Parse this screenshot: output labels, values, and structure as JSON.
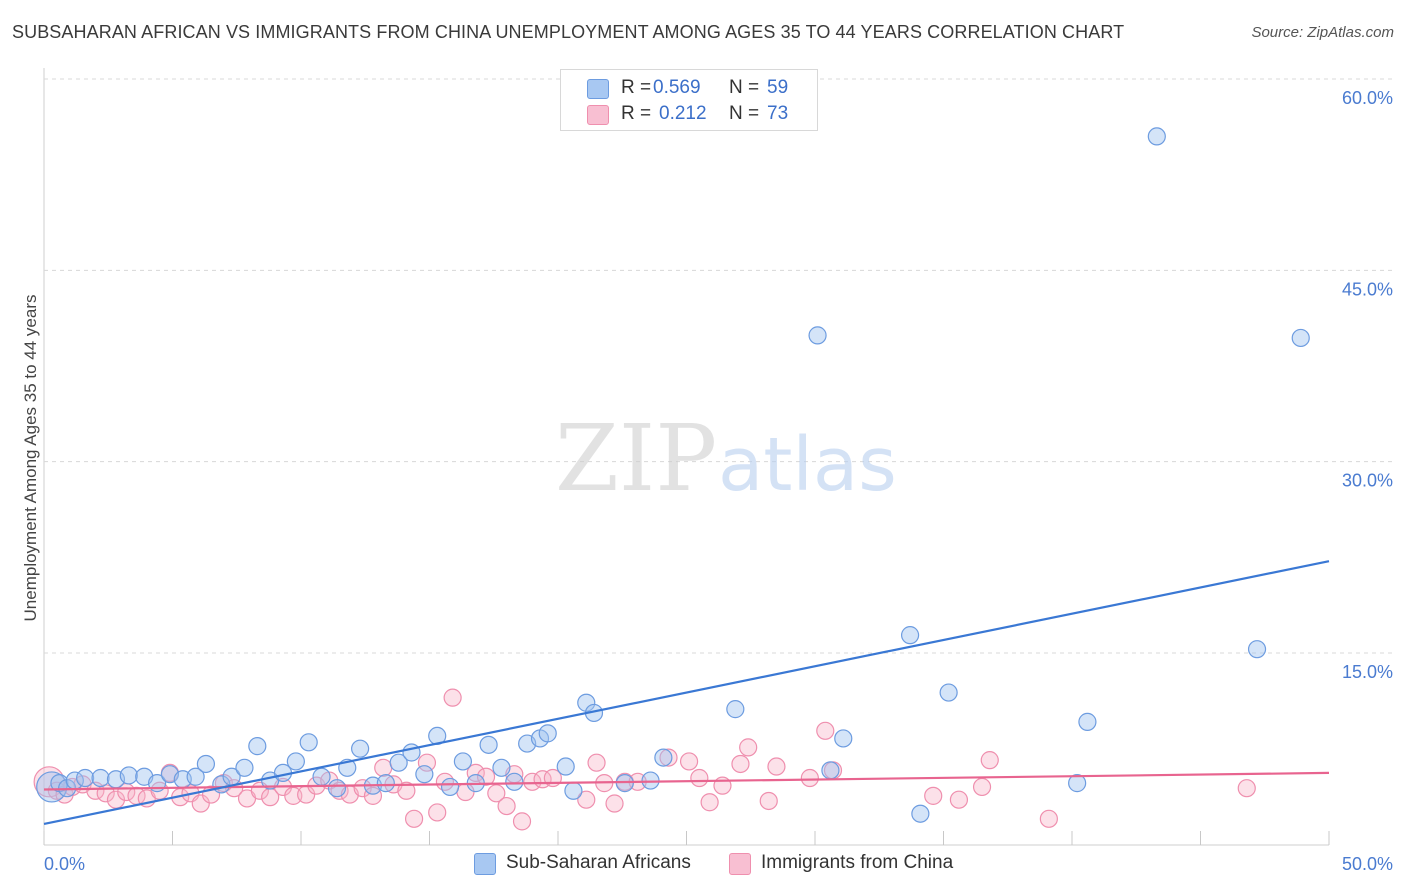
{
  "title": "SUBSAHARAN AFRICAN VS IMMIGRANTS FROM CHINA UNEMPLOYMENT AMONG AGES 35 TO 44 YEARS CORRELATION CHART",
  "source": "Source: ZipAtlas.com",
  "watermark": {
    "zip": "ZIP",
    "atlas": "atlas"
  },
  "colors": {
    "blue": "#3a78d4",
    "blue_fill": "rgba(160,195,240,0.45)",
    "blue_stroke": "#6d9ce0",
    "pink": "#e8648f",
    "pink_fill": "rgba(248,180,200,0.40)",
    "pink_stroke": "#ef8fae",
    "grid": "#d8d8d8",
    "tick_label": "#4a7bd0"
  },
  "legend": {
    "rows": [
      {
        "r_label": "R =",
        "r_value": "0.569",
        "n_label": "N =",
        "n_value": "59",
        "color": "#a8c8f2"
      },
      {
        "r_label": "R =",
        "r_value": "0.212",
        "n_label": "N =",
        "n_value": "73",
        "color": "#f8bfd2"
      }
    ]
  },
  "bottom_legend": [
    {
      "label": "Sub-Saharan Africans",
      "color": "#a8c8f2"
    },
    {
      "label": "Immigrants from China",
      "color": "#f8bfd2"
    }
  ],
  "chart_data": {
    "type": "scatter",
    "title": "SUBSAHARAN AFRICAN VS IMMIGRANTS FROM CHINA UNEMPLOYMENT AMONG AGES 35 TO 44 YEARS CORRELATION CHART",
    "xlabel": "",
    "ylabel": "Unemployment Among Ages 35 to 44 years",
    "xlim": [
      0,
      50
    ],
    "ylim": [
      0,
      63
    ],
    "x_tick_labels": [
      "0.0%",
      "50.0%"
    ],
    "y_ticks": [
      15,
      30,
      45,
      60
    ],
    "y_tick_labels": [
      "15.0%",
      "30.0%",
      "45.0%",
      "60.0%"
    ],
    "series": [
      {
        "name": "Sub-Saharan Africans",
        "r": 0.569,
        "n": 59,
        "trend": {
          "x": [
            0,
            50
          ],
          "y": [
            1.6,
            22.2
          ]
        },
        "points": [
          [
            0.3,
            4.5
          ],
          [
            0.6,
            4.8
          ],
          [
            0.9,
            4.4
          ],
          [
            1.2,
            5.0
          ],
          [
            1.6,
            5.2
          ],
          [
            2.2,
            5.2
          ],
          [
            2.8,
            5.1
          ],
          [
            3.3,
            5.4
          ],
          [
            3.9,
            5.3
          ],
          [
            4.4,
            4.8
          ],
          [
            4.9,
            5.5
          ],
          [
            5.4,
            5.1
          ],
          [
            5.9,
            5.3
          ],
          [
            6.3,
            6.3
          ],
          [
            6.9,
            4.7
          ],
          [
            7.3,
            5.3
          ],
          [
            7.8,
            6.0
          ],
          [
            8.3,
            7.7
          ],
          [
            8.8,
            5.0
          ],
          [
            9.3,
            5.6
          ],
          [
            9.8,
            6.5
          ],
          [
            10.3,
            8.0
          ],
          [
            10.8,
            5.3
          ],
          [
            11.4,
            4.4
          ],
          [
            11.8,
            6.0
          ],
          [
            12.3,
            7.5
          ],
          [
            12.8,
            4.6
          ],
          [
            13.3,
            4.8
          ],
          [
            13.8,
            6.4
          ],
          [
            14.3,
            7.2
          ],
          [
            14.8,
            5.5
          ],
          [
            15.3,
            8.5
          ],
          [
            15.8,
            4.5
          ],
          [
            16.3,
            6.5
          ],
          [
            16.8,
            4.8
          ],
          [
            17.3,
            7.8
          ],
          [
            17.8,
            6.0
          ],
          [
            18.3,
            4.9
          ],
          [
            18.8,
            7.9
          ],
          [
            19.3,
            8.3
          ],
          [
            19.6,
            8.7
          ],
          [
            20.3,
            6.1
          ],
          [
            20.6,
            4.2
          ],
          [
            21.1,
            11.1
          ],
          [
            21.4,
            10.3
          ],
          [
            22.6,
            4.8
          ],
          [
            23.6,
            5.0
          ],
          [
            24.1,
            6.8
          ],
          [
            26.9,
            10.6
          ],
          [
            30.1,
            39.9
          ],
          [
            30.6,
            5.8
          ],
          [
            31.1,
            8.3
          ],
          [
            33.7,
            16.4
          ],
          [
            34.1,
            2.4
          ],
          [
            35.2,
            11.9
          ],
          [
            40.2,
            4.8
          ],
          [
            40.6,
            9.6
          ],
          [
            43.3,
            55.5
          ],
          [
            47.2,
            15.3
          ],
          [
            48.9,
            39.7
          ]
        ]
      },
      {
        "name": "Immigrants from China",
        "r": 0.212,
        "n": 73,
        "trend": {
          "x": [
            0,
            50
          ],
          "y": [
            4.3,
            5.6
          ]
        },
        "points": [
          [
            0.2,
            4.9
          ],
          [
            0.5,
            4.2
          ],
          [
            0.8,
            3.9
          ],
          [
            1.1,
            4.5
          ],
          [
            1.5,
            4.7
          ],
          [
            2.0,
            4.2
          ],
          [
            2.4,
            4.0
          ],
          [
            2.8,
            3.5
          ],
          [
            3.2,
            4.1
          ],
          [
            3.6,
            3.8
          ],
          [
            4.0,
            3.6
          ],
          [
            4.5,
            4.2
          ],
          [
            4.9,
            5.6
          ],
          [
            5.3,
            3.7
          ],
          [
            5.7,
            4.0
          ],
          [
            6.1,
            3.2
          ],
          [
            6.5,
            3.9
          ],
          [
            7.0,
            4.8
          ],
          [
            7.4,
            4.4
          ],
          [
            7.9,
            3.6
          ],
          [
            8.4,
            4.2
          ],
          [
            8.8,
            3.7
          ],
          [
            9.3,
            4.5
          ],
          [
            9.7,
            3.8
          ],
          [
            10.2,
            3.9
          ],
          [
            10.6,
            4.6
          ],
          [
            11.1,
            5.0
          ],
          [
            11.5,
            4.2
          ],
          [
            11.9,
            3.9
          ],
          [
            12.4,
            4.4
          ],
          [
            12.8,
            3.8
          ],
          [
            13.2,
            6.0
          ],
          [
            13.6,
            4.7
          ],
          [
            14.1,
            4.2
          ],
          [
            14.4,
            2.0
          ],
          [
            14.9,
            6.4
          ],
          [
            15.3,
            2.5
          ],
          [
            15.6,
            4.9
          ],
          [
            15.9,
            11.5
          ],
          [
            16.4,
            4.1
          ],
          [
            16.8,
            5.6
          ],
          [
            17.2,
            5.3
          ],
          [
            17.6,
            4.0
          ],
          [
            18.0,
            3.0
          ],
          [
            18.3,
            5.5
          ],
          [
            18.6,
            1.8
          ],
          [
            19.0,
            4.9
          ],
          [
            19.4,
            5.1
          ],
          [
            19.8,
            5.2
          ],
          [
            21.1,
            3.5
          ],
          [
            21.5,
            6.4
          ],
          [
            21.8,
            4.8
          ],
          [
            22.2,
            3.2
          ],
          [
            22.6,
            4.9
          ],
          [
            23.1,
            4.9
          ],
          [
            24.3,
            6.8
          ],
          [
            25.1,
            6.5
          ],
          [
            25.5,
            5.2
          ],
          [
            25.9,
            3.3
          ],
          [
            26.4,
            4.6
          ],
          [
            27.1,
            6.3
          ],
          [
            27.4,
            7.6
          ],
          [
            28.2,
            3.4
          ],
          [
            28.5,
            6.1
          ],
          [
            29.8,
            5.2
          ],
          [
            30.4,
            8.9
          ],
          [
            30.7,
            5.8
          ],
          [
            34.6,
            3.8
          ],
          [
            35.6,
            3.5
          ],
          [
            36.5,
            4.5
          ],
          [
            36.8,
            6.6
          ],
          [
            39.1,
            2.0
          ],
          [
            46.8,
            4.4
          ]
        ]
      }
    ]
  }
}
